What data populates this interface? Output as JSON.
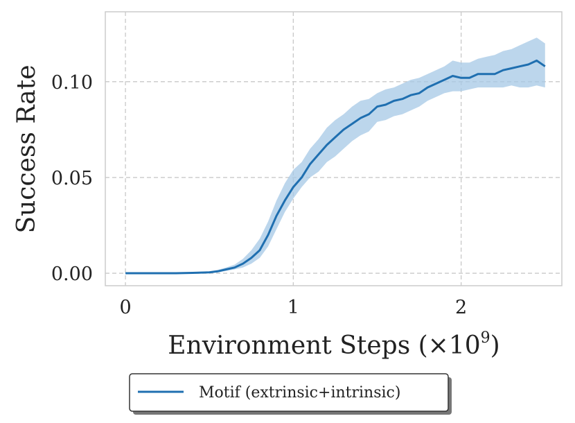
{
  "chart_data": {
    "type": "line",
    "xlabel": "Environment Steps (×10",
    "xlabel_exponent": "9",
    "xlabel_close": ")",
    "ylabel": "Success Rate",
    "xlim": [
      -0.12,
      2.6
    ],
    "ylim": [
      -0.0065,
      0.1365
    ],
    "xticks": [
      0,
      1,
      2
    ],
    "xtick_labels": [
      "0",
      "1",
      "2"
    ],
    "yticks": [
      0.0,
      0.05,
      0.1
    ],
    "ytick_labels": [
      "0.00",
      "0.05",
      "0.10"
    ],
    "grid": true,
    "legend_position": "below-center",
    "series": [
      {
        "name": "Motif (extrinsic+intrinsic)",
        "color": "#1f6fb0",
        "band_color": "#a6c8e6",
        "x": [
          0,
          0.1,
          0.2,
          0.3,
          0.4,
          0.5,
          0.55,
          0.6,
          0.65,
          0.7,
          0.75,
          0.8,
          0.85,
          0.9,
          0.95,
          1.0,
          1.05,
          1.1,
          1.15,
          1.2,
          1.25,
          1.3,
          1.35,
          1.4,
          1.45,
          1.5,
          1.55,
          1.6,
          1.65,
          1.7,
          1.75,
          1.8,
          1.85,
          1.9,
          1.95,
          2.0,
          2.05,
          2.1,
          2.15,
          2.2,
          2.25,
          2.3,
          2.35,
          2.4,
          2.45,
          2.5
        ],
        "y": [
          0.0,
          0.0,
          0.0,
          0.0,
          0.0002,
          0.0005,
          0.001,
          0.002,
          0.003,
          0.005,
          0.008,
          0.012,
          0.02,
          0.03,
          0.038,
          0.045,
          0.05,
          0.057,
          0.062,
          0.067,
          0.071,
          0.075,
          0.078,
          0.081,
          0.083,
          0.087,
          0.088,
          0.09,
          0.091,
          0.093,
          0.094,
          0.097,
          0.099,
          0.101,
          0.103,
          0.102,
          0.102,
          0.104,
          0.104,
          0.104,
          0.106,
          0.107,
          0.108,
          0.109,
          0.111,
          0.108
        ],
        "lower": [
          0.0,
          0.0,
          0.0,
          0.0,
          0.0,
          0.0002,
          0.0005,
          0.0012,
          0.002,
          0.003,
          0.005,
          0.008,
          0.014,
          0.023,
          0.032,
          0.039,
          0.045,
          0.05,
          0.053,
          0.058,
          0.061,
          0.065,
          0.069,
          0.072,
          0.074,
          0.079,
          0.08,
          0.082,
          0.083,
          0.085,
          0.087,
          0.09,
          0.092,
          0.094,
          0.095,
          0.095,
          0.096,
          0.097,
          0.097,
          0.097,
          0.097,
          0.098,
          0.097,
          0.097,
          0.098,
          0.097
        ],
        "upper": [
          0.0002,
          0.0002,
          0.0002,
          0.0003,
          0.0006,
          0.001,
          0.0018,
          0.003,
          0.0045,
          0.0075,
          0.012,
          0.018,
          0.027,
          0.038,
          0.047,
          0.054,
          0.058,
          0.065,
          0.07,
          0.076,
          0.08,
          0.083,
          0.087,
          0.09,
          0.091,
          0.094,
          0.096,
          0.097,
          0.099,
          0.101,
          0.102,
          0.104,
          0.106,
          0.108,
          0.111,
          0.11,
          0.11,
          0.112,
          0.113,
          0.114,
          0.116,
          0.117,
          0.119,
          0.121,
          0.123,
          0.12
        ]
      }
    ]
  }
}
